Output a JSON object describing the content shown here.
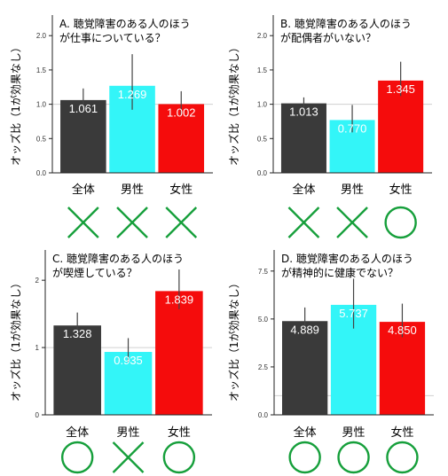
{
  "colors": {
    "all": "#3a3a3a",
    "male": "#33f5f8",
    "female": "#f50c0c",
    "mark": "#169f3b"
  },
  "chart_data": [
    {
      "type": "bar",
      "title_lines": [
        "A. 聴覚障害のある人のほう",
        "が仕事についている？"
      ],
      "ylabel": "オッズ比（1が効果なし）",
      "categories": [
        "全体",
        "男性",
        "女性"
      ],
      "values": [
        1.061,
        1.269,
        1.002
      ],
      "value_labels": [
        "1.061",
        "1.269",
        "1.002"
      ],
      "ci_low": [
        0.95,
        0.92,
        0.85
      ],
      "ci_high": [
        1.23,
        1.73,
        1.19
      ],
      "ylim": [
        0,
        2.3
      ],
      "yticks": [
        "0.0",
        "0.5",
        "1.0",
        "1.5",
        "2.0"
      ],
      "marks": [
        "×",
        "×",
        "×"
      ]
    },
    {
      "type": "bar",
      "title_lines": [
        "B. 聴覚障害のある人のほう",
        "が配偶者がいない？"
      ],
      "ylabel": "オッズ比（1が効果なし）",
      "categories": [
        "全体",
        "男性",
        "女性"
      ],
      "values": [
        1.013,
        0.77,
        1.345
      ],
      "value_labels": [
        "1.013",
        "0.770",
        "1.345"
      ],
      "ci_low": [
        0.92,
        0.59,
        1.12
      ],
      "ci_high": [
        1.1,
        0.99,
        1.62
      ],
      "ylim": [
        0,
        2.3
      ],
      "yticks": [
        "0.0",
        "0.5",
        "1.0",
        "1.5",
        "2.0"
      ],
      "marks": [
        "×",
        "×",
        "○"
      ]
    },
    {
      "type": "bar",
      "title_lines": [
        "C. 聴覚障害のある人のほう",
        "が喫煙している？"
      ],
      "ylabel": "オッズ比（1が効果なし）",
      "categories": [
        "全体",
        "男性",
        "女性"
      ],
      "values": [
        1.328,
        0.935,
        1.839
      ],
      "value_labels": [
        "1.328",
        "0.935",
        "1.839"
      ],
      "ci_low": [
        1.15,
        0.78,
        1.57
      ],
      "ci_high": [
        1.52,
        1.14,
        2.16
      ],
      "ylim": [
        0,
        2.45
      ],
      "yticks": [
        "0",
        "1",
        "2"
      ],
      "marks": [
        "○",
        "×",
        "○"
      ]
    },
    {
      "type": "bar",
      "title_lines": [
        "D. 聴覚障害のある人のほう",
        "が精神的に健康でない？"
      ],
      "ylabel": "オッズ比（1が効果なし）",
      "categories": [
        "全体",
        "男性",
        "女性"
      ],
      "values": [
        4.889,
        5.737,
        4.85
      ],
      "value_labels": [
        "4.889",
        "5.737",
        "4.850"
      ],
      "ci_low": [
        4.3,
        4.5,
        4.05
      ],
      "ci_high": [
        5.6,
        7.1,
        5.8
      ],
      "ylim": [
        0,
        8.6
      ],
      "yticks": [
        "0.0",
        "2.5",
        "5.0",
        "7.5"
      ],
      "marks": [
        "○",
        "○",
        "○"
      ]
    }
  ]
}
